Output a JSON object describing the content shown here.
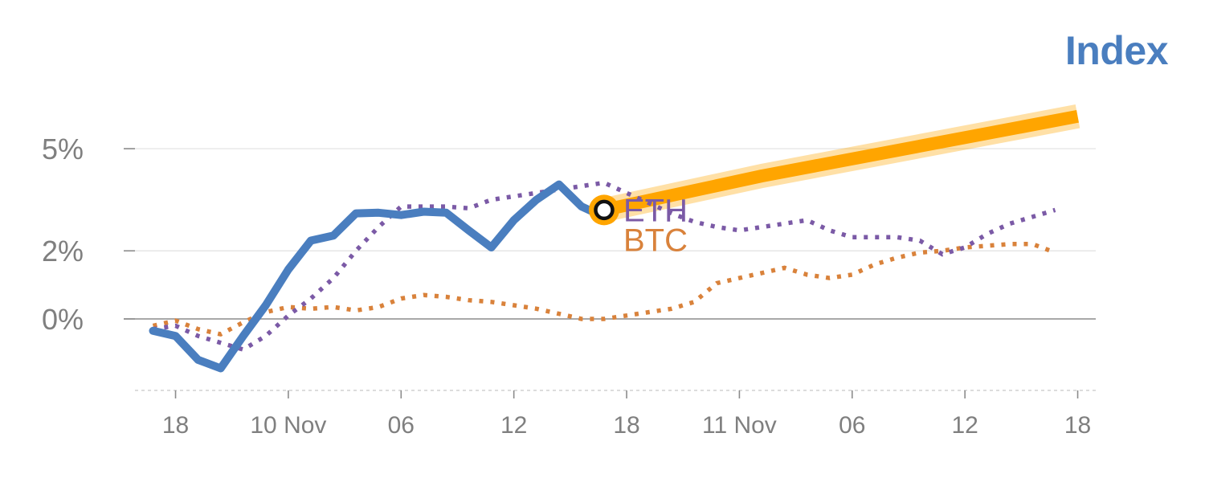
{
  "chart_data": {
    "type": "line",
    "title": "Index",
    "colors": {
      "index": "#4a7ebf",
      "eth": "#7b5aa6",
      "btc": "#d9823b",
      "projection": "#ffa500",
      "axis": "#8c8c8c",
      "grid": "#e6e6e6",
      "tick_text": "#7f7f7f"
    },
    "y_ticks": [
      {
        "label": "5%",
        "value": 5
      },
      {
        "label": "2%",
        "value": 2
      },
      {
        "label": "0%",
        "value": 0
      }
    ],
    "ylim": [
      -2.1,
      6.3
    ],
    "x_ticks": [
      {
        "label": "18",
        "x": 1
      },
      {
        "label": "10 Nov",
        "x": 6
      },
      {
        "label": "06",
        "x": 11
      },
      {
        "label": "12",
        "x": 16
      },
      {
        "label": "18",
        "x": 21
      },
      {
        "label": "11 Nov",
        "x": 26
      },
      {
        "label": "06",
        "x": 31
      },
      {
        "label": "12",
        "x": 36
      },
      {
        "label": "18",
        "x": 41
      }
    ],
    "xlim": [
      -0.8,
      41.8
    ],
    "series": [
      {
        "key": "index",
        "x": [
          0,
          1,
          2,
          3,
          4,
          5,
          6,
          7,
          8,
          9,
          10,
          11,
          12,
          13,
          14,
          15,
          16,
          17,
          18,
          19,
          20
        ],
        "values": [
          -0.35,
          -0.5,
          -1.2,
          -1.45,
          -0.5,
          0.4,
          1.45,
          2.3,
          2.45,
          3.1,
          3.12,
          3.05,
          3.15,
          3.12,
          2.6,
          2.1,
          2.9,
          3.5,
          3.95,
          3.3,
          3.0
        ]
      },
      {
        "key": "eth",
        "name": "ETH",
        "x": [
          0,
          1,
          2,
          3,
          4,
          5,
          6,
          7,
          8,
          9,
          10,
          11,
          12,
          13,
          14,
          15,
          16,
          17,
          18,
          19,
          20,
          21,
          22,
          23,
          24,
          25,
          26,
          27,
          28,
          29,
          30,
          31,
          32,
          33,
          34,
          35,
          36,
          37,
          38,
          39,
          40
        ],
        "values": [
          -0.3,
          -0.2,
          -0.5,
          -0.7,
          -0.9,
          -0.5,
          0.1,
          0.6,
          1.2,
          2.0,
          2.7,
          3.3,
          3.3,
          3.3,
          3.25,
          3.5,
          3.6,
          3.7,
          3.8,
          3.9,
          4.0,
          3.7,
          3.4,
          3.1,
          2.85,
          2.7,
          2.6,
          2.7,
          2.8,
          2.9,
          2.6,
          2.4,
          2.4,
          2.4,
          2.3,
          1.9,
          2.1,
          2.5,
          2.8,
          3.0,
          3.2
        ]
      },
      {
        "key": "btc",
        "name": "BTC",
        "x": [
          0,
          1,
          2,
          3,
          4,
          5,
          6,
          7,
          8,
          9,
          10,
          11,
          12,
          13,
          14,
          15,
          16,
          17,
          18,
          19,
          20,
          21,
          22,
          23,
          24,
          25,
          26,
          27,
          28,
          29,
          30,
          31,
          32,
          33,
          34,
          35,
          36,
          37,
          38,
          39,
          40
        ],
        "values": [
          -0.2,
          -0.05,
          -0.3,
          -0.45,
          -0.1,
          0.2,
          0.35,
          0.3,
          0.35,
          0.25,
          0.35,
          0.6,
          0.7,
          0.65,
          0.55,
          0.5,
          0.4,
          0.3,
          0.15,
          0.0,
          0.0,
          0.1,
          0.2,
          0.3,
          0.5,
          1.05,
          1.2,
          1.35,
          1.5,
          1.3,
          1.2,
          1.3,
          1.6,
          1.8,
          1.95,
          2.0,
          2.1,
          2.15,
          2.2,
          2.2,
          1.95
        ]
      },
      {
        "key": "projection",
        "x": [
          20,
          27,
          41
        ],
        "values": [
          3.2,
          4.2,
          5.95
        ]
      }
    ],
    "marker": {
      "x": 20,
      "value": 3.2
    }
  }
}
